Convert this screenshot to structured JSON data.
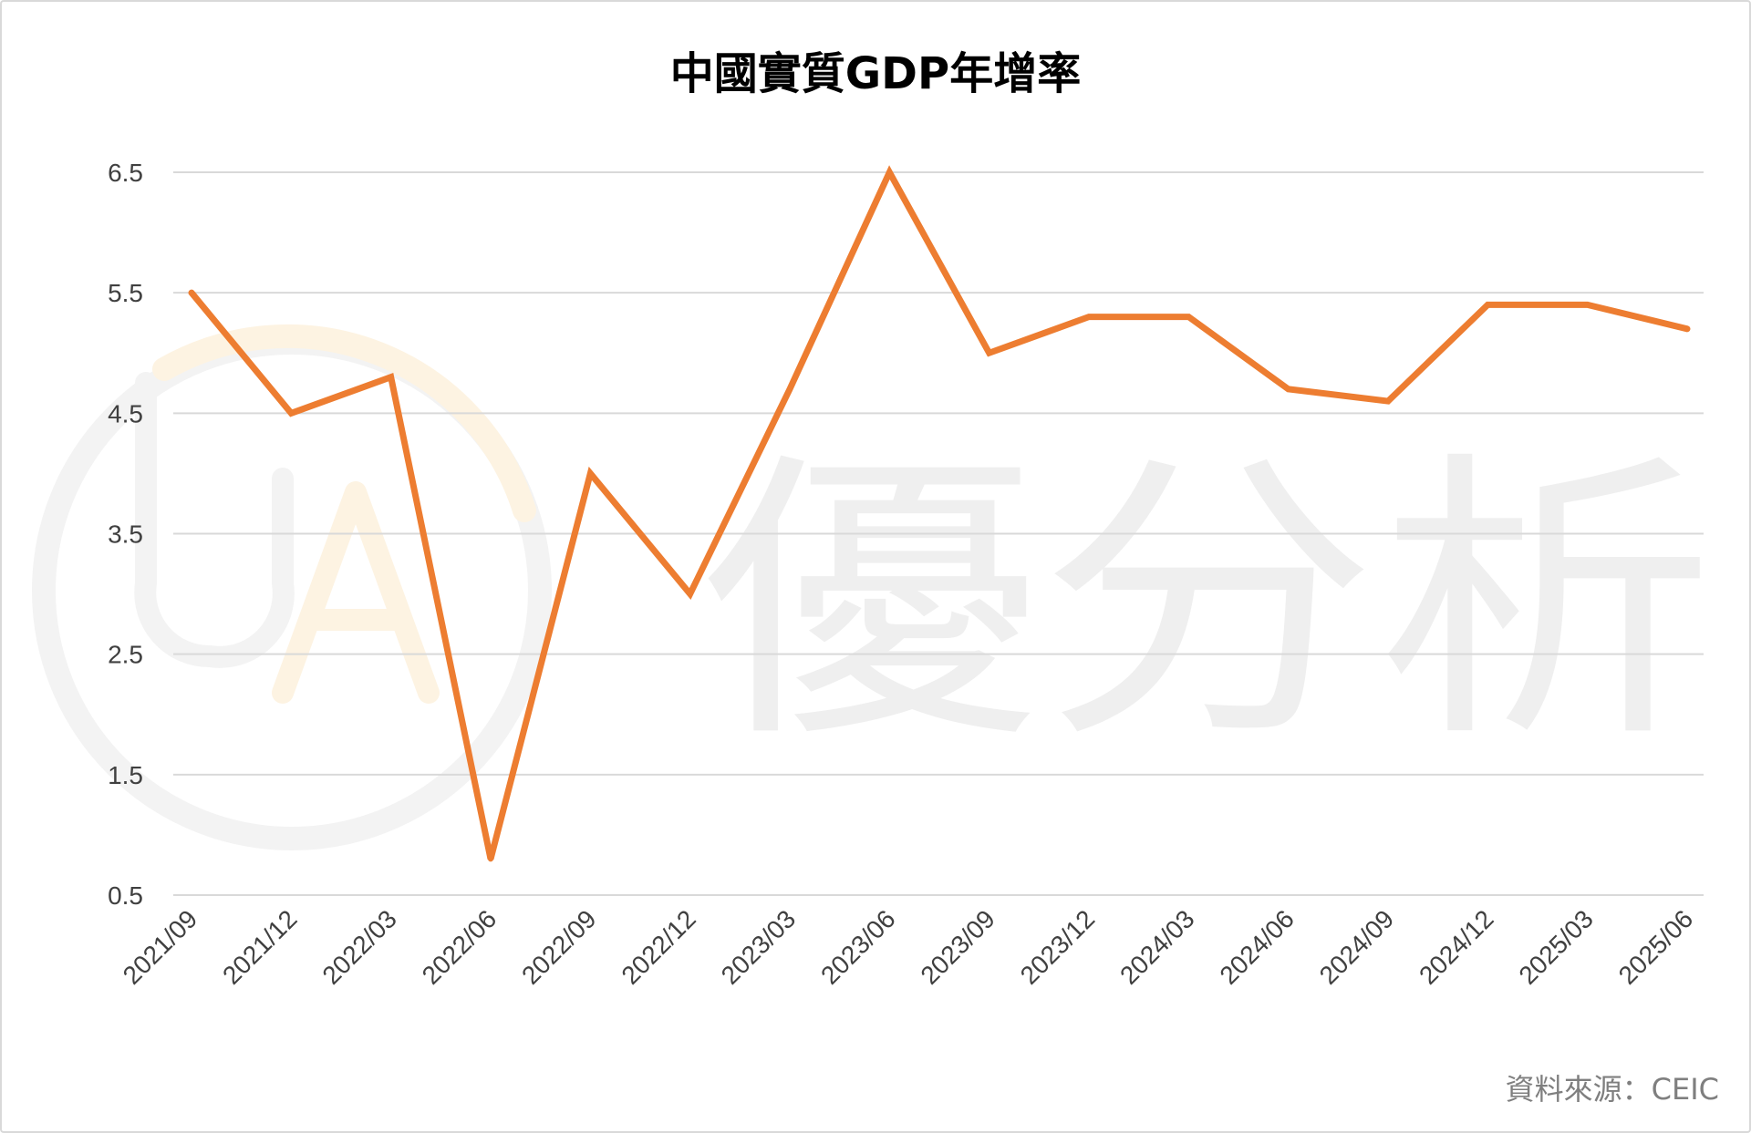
{
  "watermark": {
    "text": "優分析",
    "logo_color": "#fbe7c8",
    "text_color": "#efefef"
  },
  "source_note": "資料來源：CEIC",
  "chart_data": {
    "type": "line",
    "title": "中國實質GDP年增率",
    "xlabel": "",
    "ylabel": "",
    "categories": [
      "2021/09",
      "2021/12",
      "2022/03",
      "2022/06",
      "2022/09",
      "2022/12",
      "2023/03",
      "2023/06",
      "2023/09",
      "2023/12",
      "2024/03",
      "2024/06",
      "2024/09",
      "2024/12",
      "2025/03",
      "2025/06"
    ],
    "series": [
      {
        "color": "#ed7d31",
        "values": [
          5.5,
          4.5,
          4.8,
          0.8,
          4.0,
          3.0,
          4.7,
          6.5,
          5.0,
          5.3,
          5.3,
          4.7,
          4.6,
          5.4,
          5.4,
          5.2
        ]
      }
    ],
    "ylim": [
      0.5,
      6.5
    ],
    "yticks": [
      "0.5",
      "1.5",
      "2.5",
      "3.5",
      "4.5",
      "5.5",
      "6.5"
    ],
    "grid": true,
    "gridline_color": "#d9d9d9",
    "legend": "none"
  }
}
